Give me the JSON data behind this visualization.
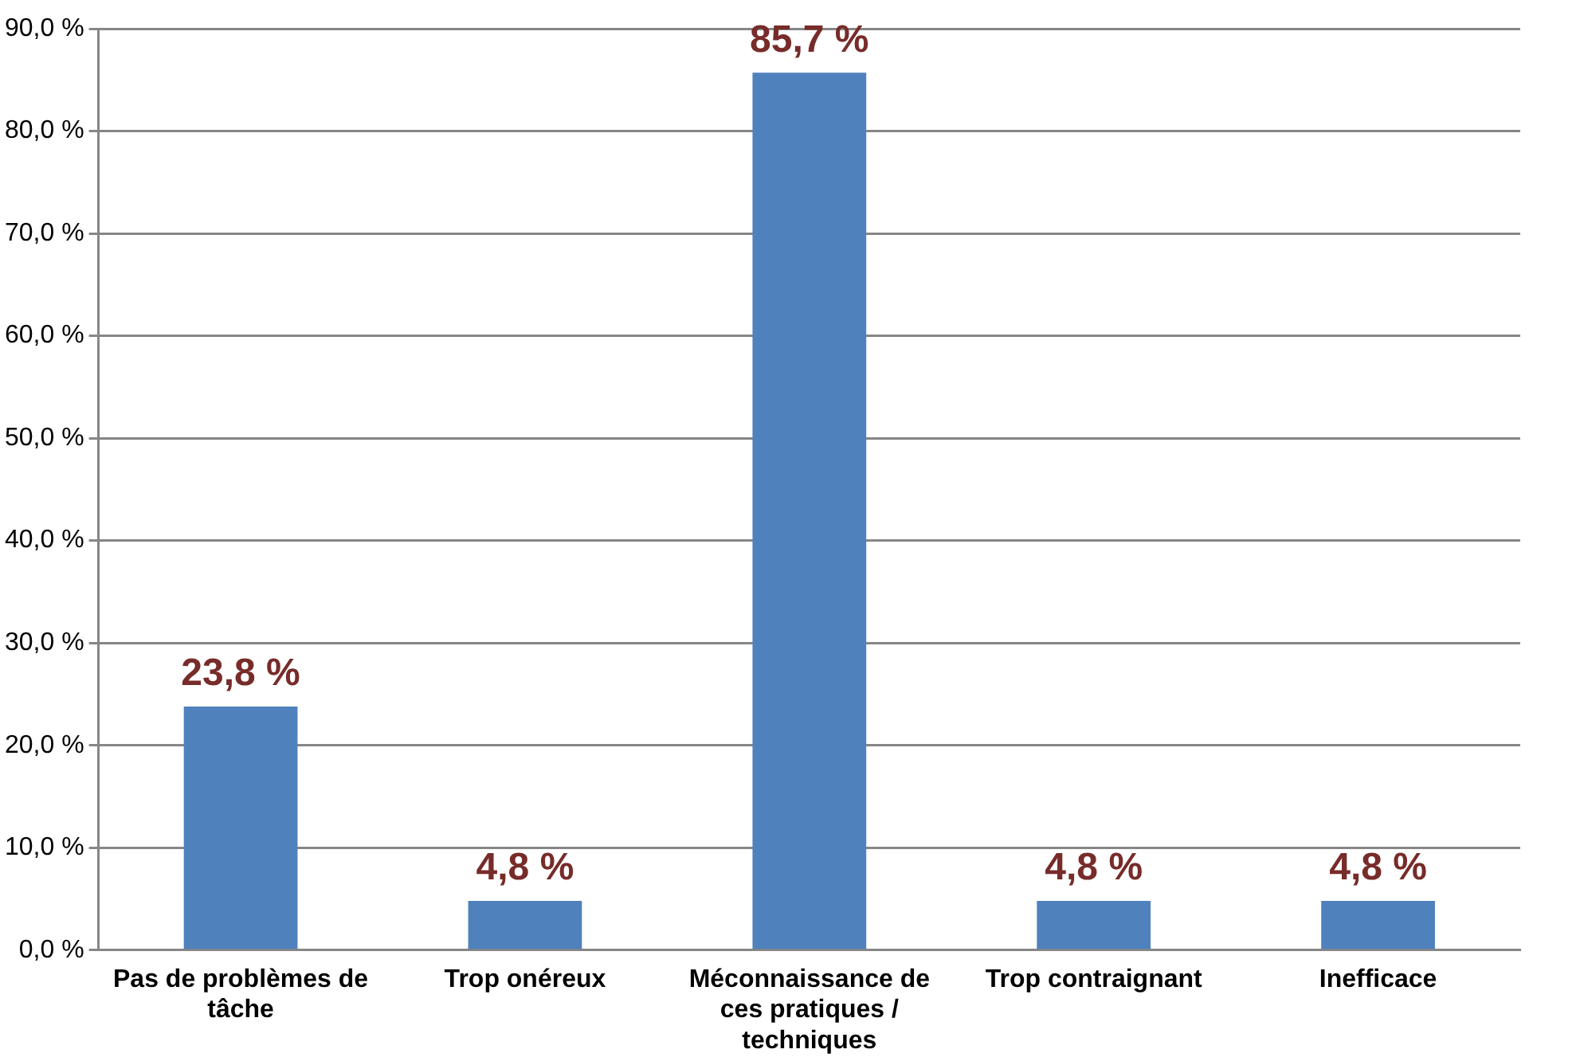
{
  "chart_data": {
    "type": "bar",
    "categories": [
      "Pas de problèmes de tâche",
      "Trop onéreux",
      "Méconnaissance de ces pratiques / techniques",
      "Trop contraignant",
      "Inefficace"
    ],
    "values": [
      23.8,
      4.8,
      85.7,
      4.8,
      4.8
    ],
    "color": "#4f81bd",
    "value_labels": [
      "23,8 %",
      "4,8 %",
      "85,7 %",
      "4,8 %",
      "4,8 %"
    ],
    "ylim": [
      0,
      90
    ],
    "yticks": [
      {
        "value": 0,
        "label": "0,0 %"
      },
      {
        "value": 10,
        "label": "10,0 %"
      },
      {
        "value": 20,
        "label": "20,0 %"
      },
      {
        "value": 30,
        "label": "30,0 %"
      },
      {
        "value": 40,
        "label": "40,0 %"
      },
      {
        "value": 50,
        "label": "50,0 %"
      },
      {
        "value": 60,
        "label": "60,0 %"
      },
      {
        "value": 70,
        "label": "70,0 %"
      },
      {
        "value": 80,
        "label": "80,0 %"
      },
      {
        "value": 90,
        "label": "90,0 %"
      }
    ],
    "grid": "y",
    "legend": false
  }
}
